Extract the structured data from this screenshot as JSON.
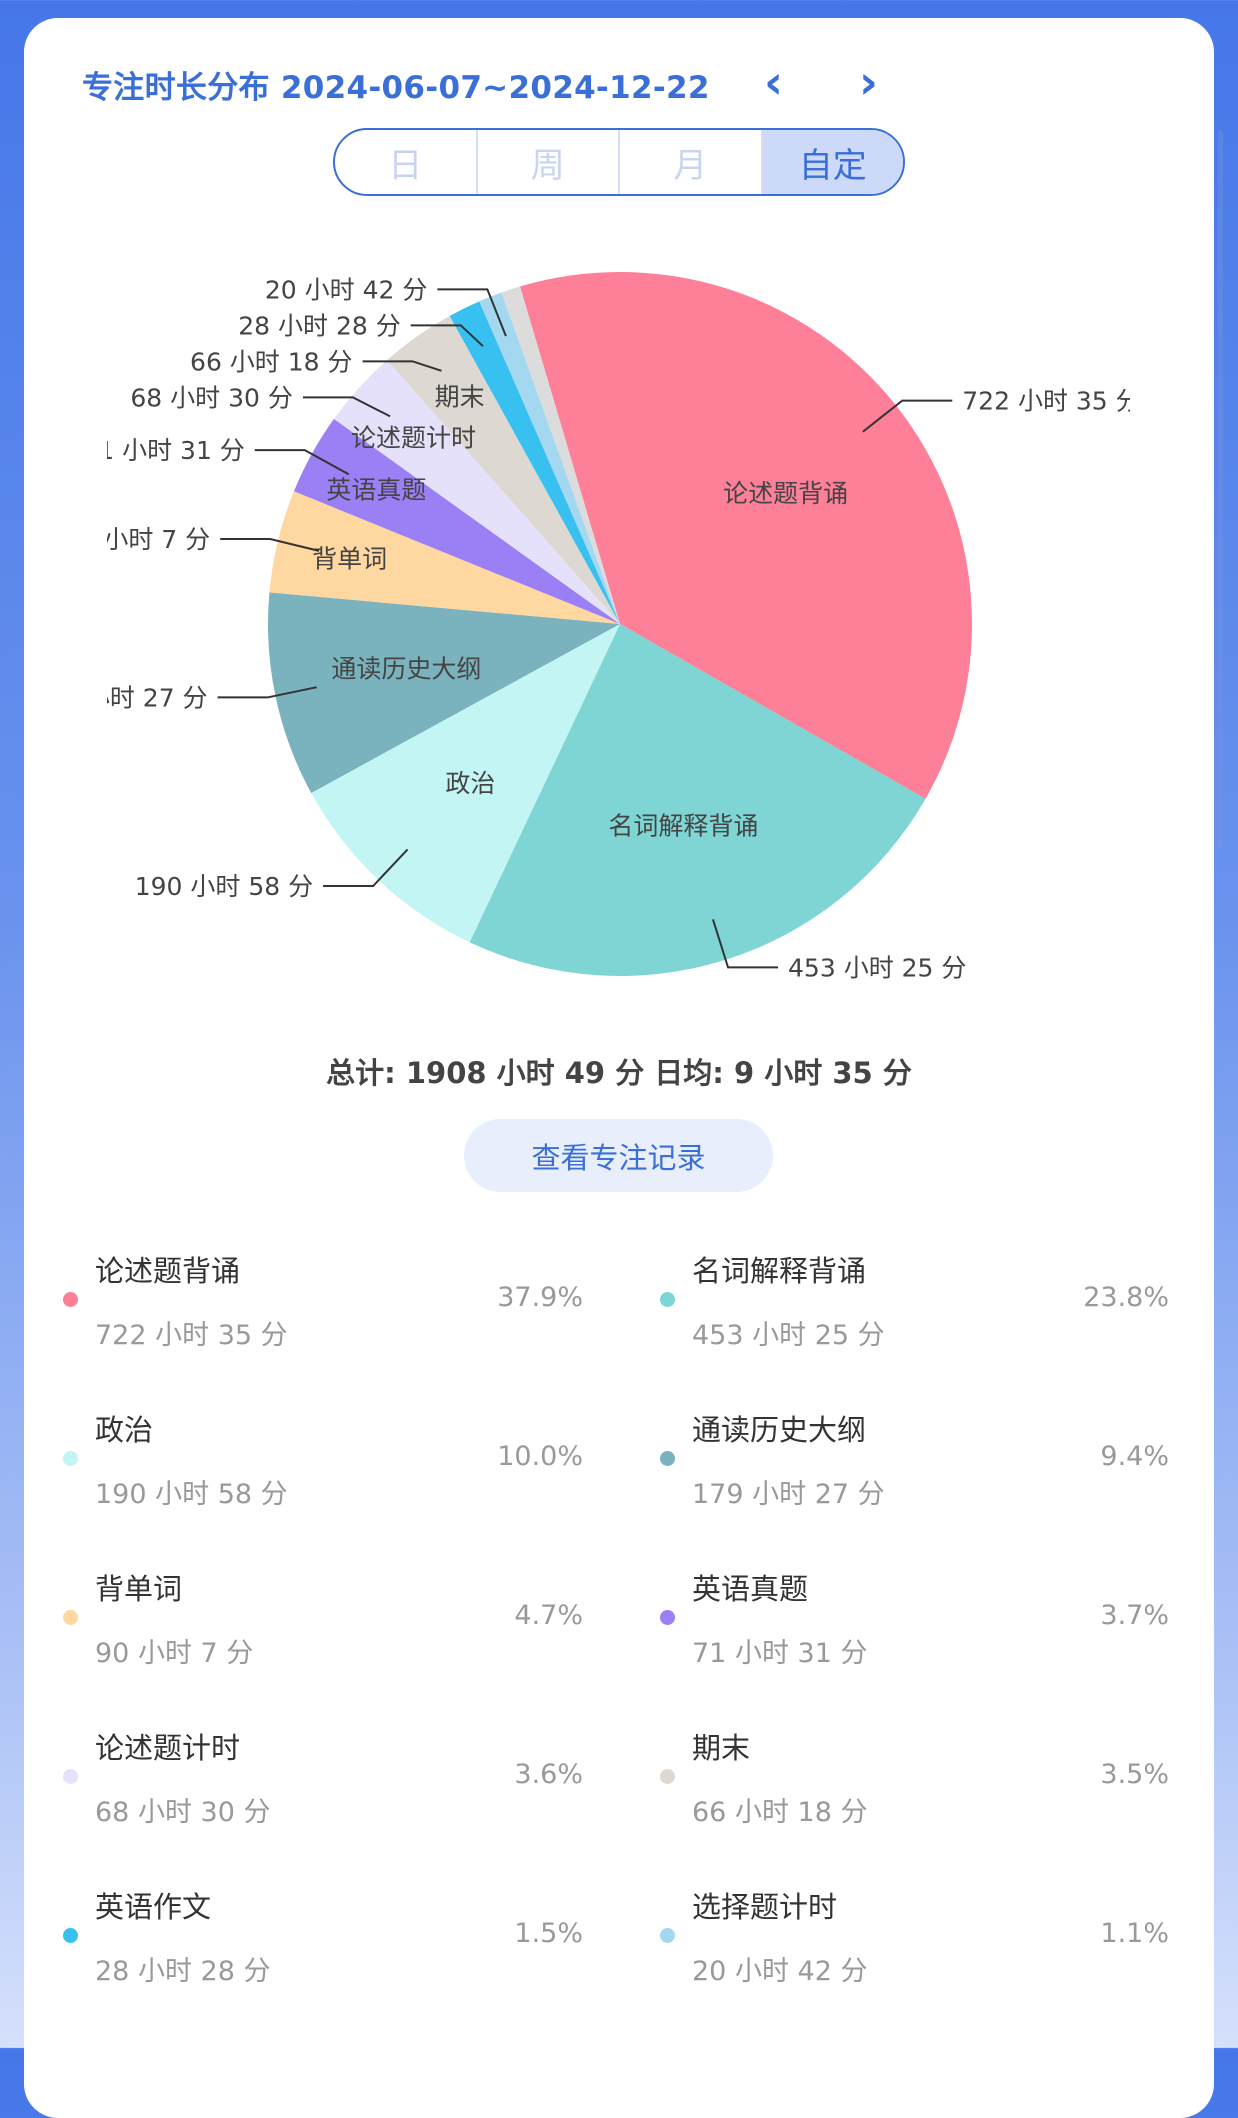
{
  "header": {
    "title": "专注时长分布 2024-06-07~2024-12-22",
    "prev_icon": "chevron-left-icon",
    "next_icon": "chevron-right-icon",
    "prev_glyph": "‹",
    "next_glyph": "›"
  },
  "tabs": [
    {
      "label": "日",
      "active": false
    },
    {
      "label": "周",
      "active": false
    },
    {
      "label": "月",
      "active": false
    },
    {
      "label": "自定",
      "active": true
    }
  ],
  "summary": {
    "text": "总计: 1908 小时 49 分  日均: 9 小时 35 分"
  },
  "view_records_button": "查看专注记录",
  "chart_data": {
    "type": "pie",
    "total_minutes": 114529,
    "series": [
      {
        "name": "论述题背诵",
        "label": "722 小时 35 分",
        "minutes": 43355,
        "percent": "37.9%",
        "color": "#fd7f98"
      },
      {
        "name": "名词解释背诵",
        "label": "453 小时 25 分",
        "minutes": 27205,
        "percent": "23.8%",
        "color": "#7fd4d4"
      },
      {
        "name": "政治",
        "label": "190 小时 58 分",
        "minutes": 11458,
        "percent": "10.0%",
        "color": "#c4f5f5"
      },
      {
        "name": "通读历史大纲",
        "label": "179 小时 27 分",
        "minutes": 10767,
        "percent": "9.4%",
        "color": "#7ab3bd"
      },
      {
        "name": "背单词",
        "label": "90 小时 7 分",
        "minutes": 5407,
        "percent": "4.7%",
        "color": "#fed7a1"
      },
      {
        "name": "英语真题",
        "label": "71 小时 31 分",
        "minutes": 4291,
        "percent": "3.7%",
        "color": "#9b7ff4"
      },
      {
        "name": "论述题计时",
        "label": "68 小时 30 分",
        "minutes": 4110,
        "percent": "3.6%",
        "color": "#e6e1fb"
      },
      {
        "name": "期末",
        "label": "66 小时 18 分",
        "minutes": 3978,
        "percent": "3.5%",
        "color": "#ddd8d1"
      },
      {
        "name": "英语作文",
        "label": "28 小时 28 分",
        "minutes": 1708,
        "percent": "1.5%",
        "color": "#38c0f0"
      },
      {
        "name": "选择题计时",
        "label": "20 小时 42 分",
        "minutes": 1242,
        "percent": "1.1%",
        "color": "#a4d8f0"
      }
    ],
    "remainder": {
      "minutes": 1008,
      "color": "#dcdcdc"
    }
  }
}
